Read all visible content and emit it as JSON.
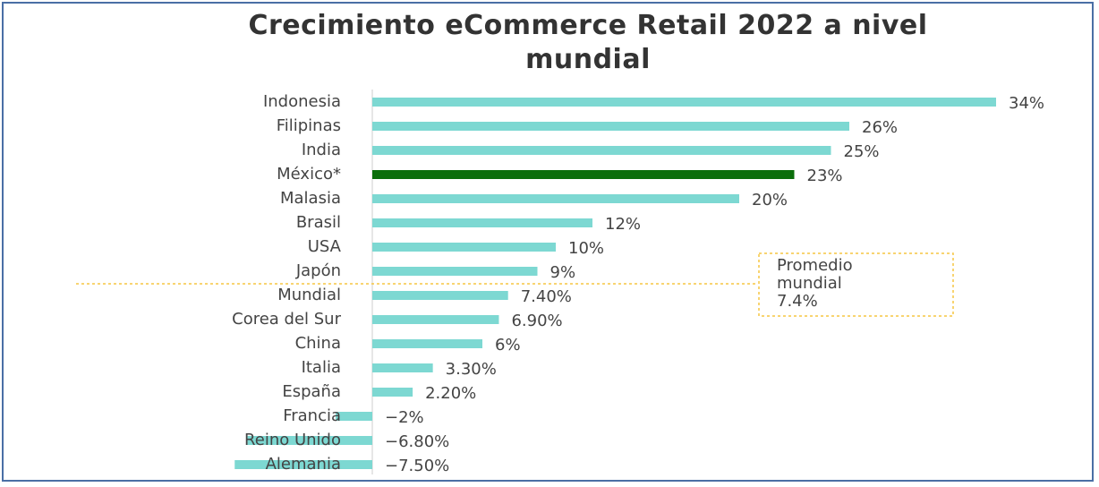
{
  "chart_data": {
    "type": "bar",
    "orientation": "horizontal",
    "title": "Crecimiento eCommerce Retail 2022 a nivel mundial",
    "categories": [
      "Indonesia",
      "Filipinas",
      "India",
      "México*",
      "Malasia",
      "Brasil",
      "USA",
      "Japón",
      "Mundial",
      "Corea del Sur",
      "China",
      "Italia",
      "España",
      "Francia",
      "Reino Unido",
      "Alemania"
    ],
    "values": [
      34,
      26,
      25,
      23,
      20,
      12,
      10,
      9,
      7.4,
      6.9,
      6,
      3.3,
      2.2,
      -2,
      -6.8,
      -7.5
    ],
    "value_labels": [
      "34%",
      "26%",
      "25%",
      "23%",
      "20%",
      "12%",
      "10%",
      "9%",
      "7.40%",
      "6.90%",
      "6%",
      "3.30%",
      "2.20%",
      "−2%",
      "−6.80%",
      "−7.50%"
    ],
    "colors": [
      "#7dd8d2",
      "#7dd8d2",
      "#7dd8d2",
      "#0b6e0b",
      "#7dd8d2",
      "#7dd8d2",
      "#7dd8d2",
      "#7dd8d2",
      "#7dd8d2",
      "#7dd8d2",
      "#7dd8d2",
      "#7dd8d2",
      "#7dd8d2",
      "#7dd8d2",
      "#7dd8d2",
      "#7dd8d2"
    ],
    "xlim": [
      -10,
      36
    ],
    "annotation": [
      "Promedio",
      "mundial",
      "7.4%"
    ]
  }
}
